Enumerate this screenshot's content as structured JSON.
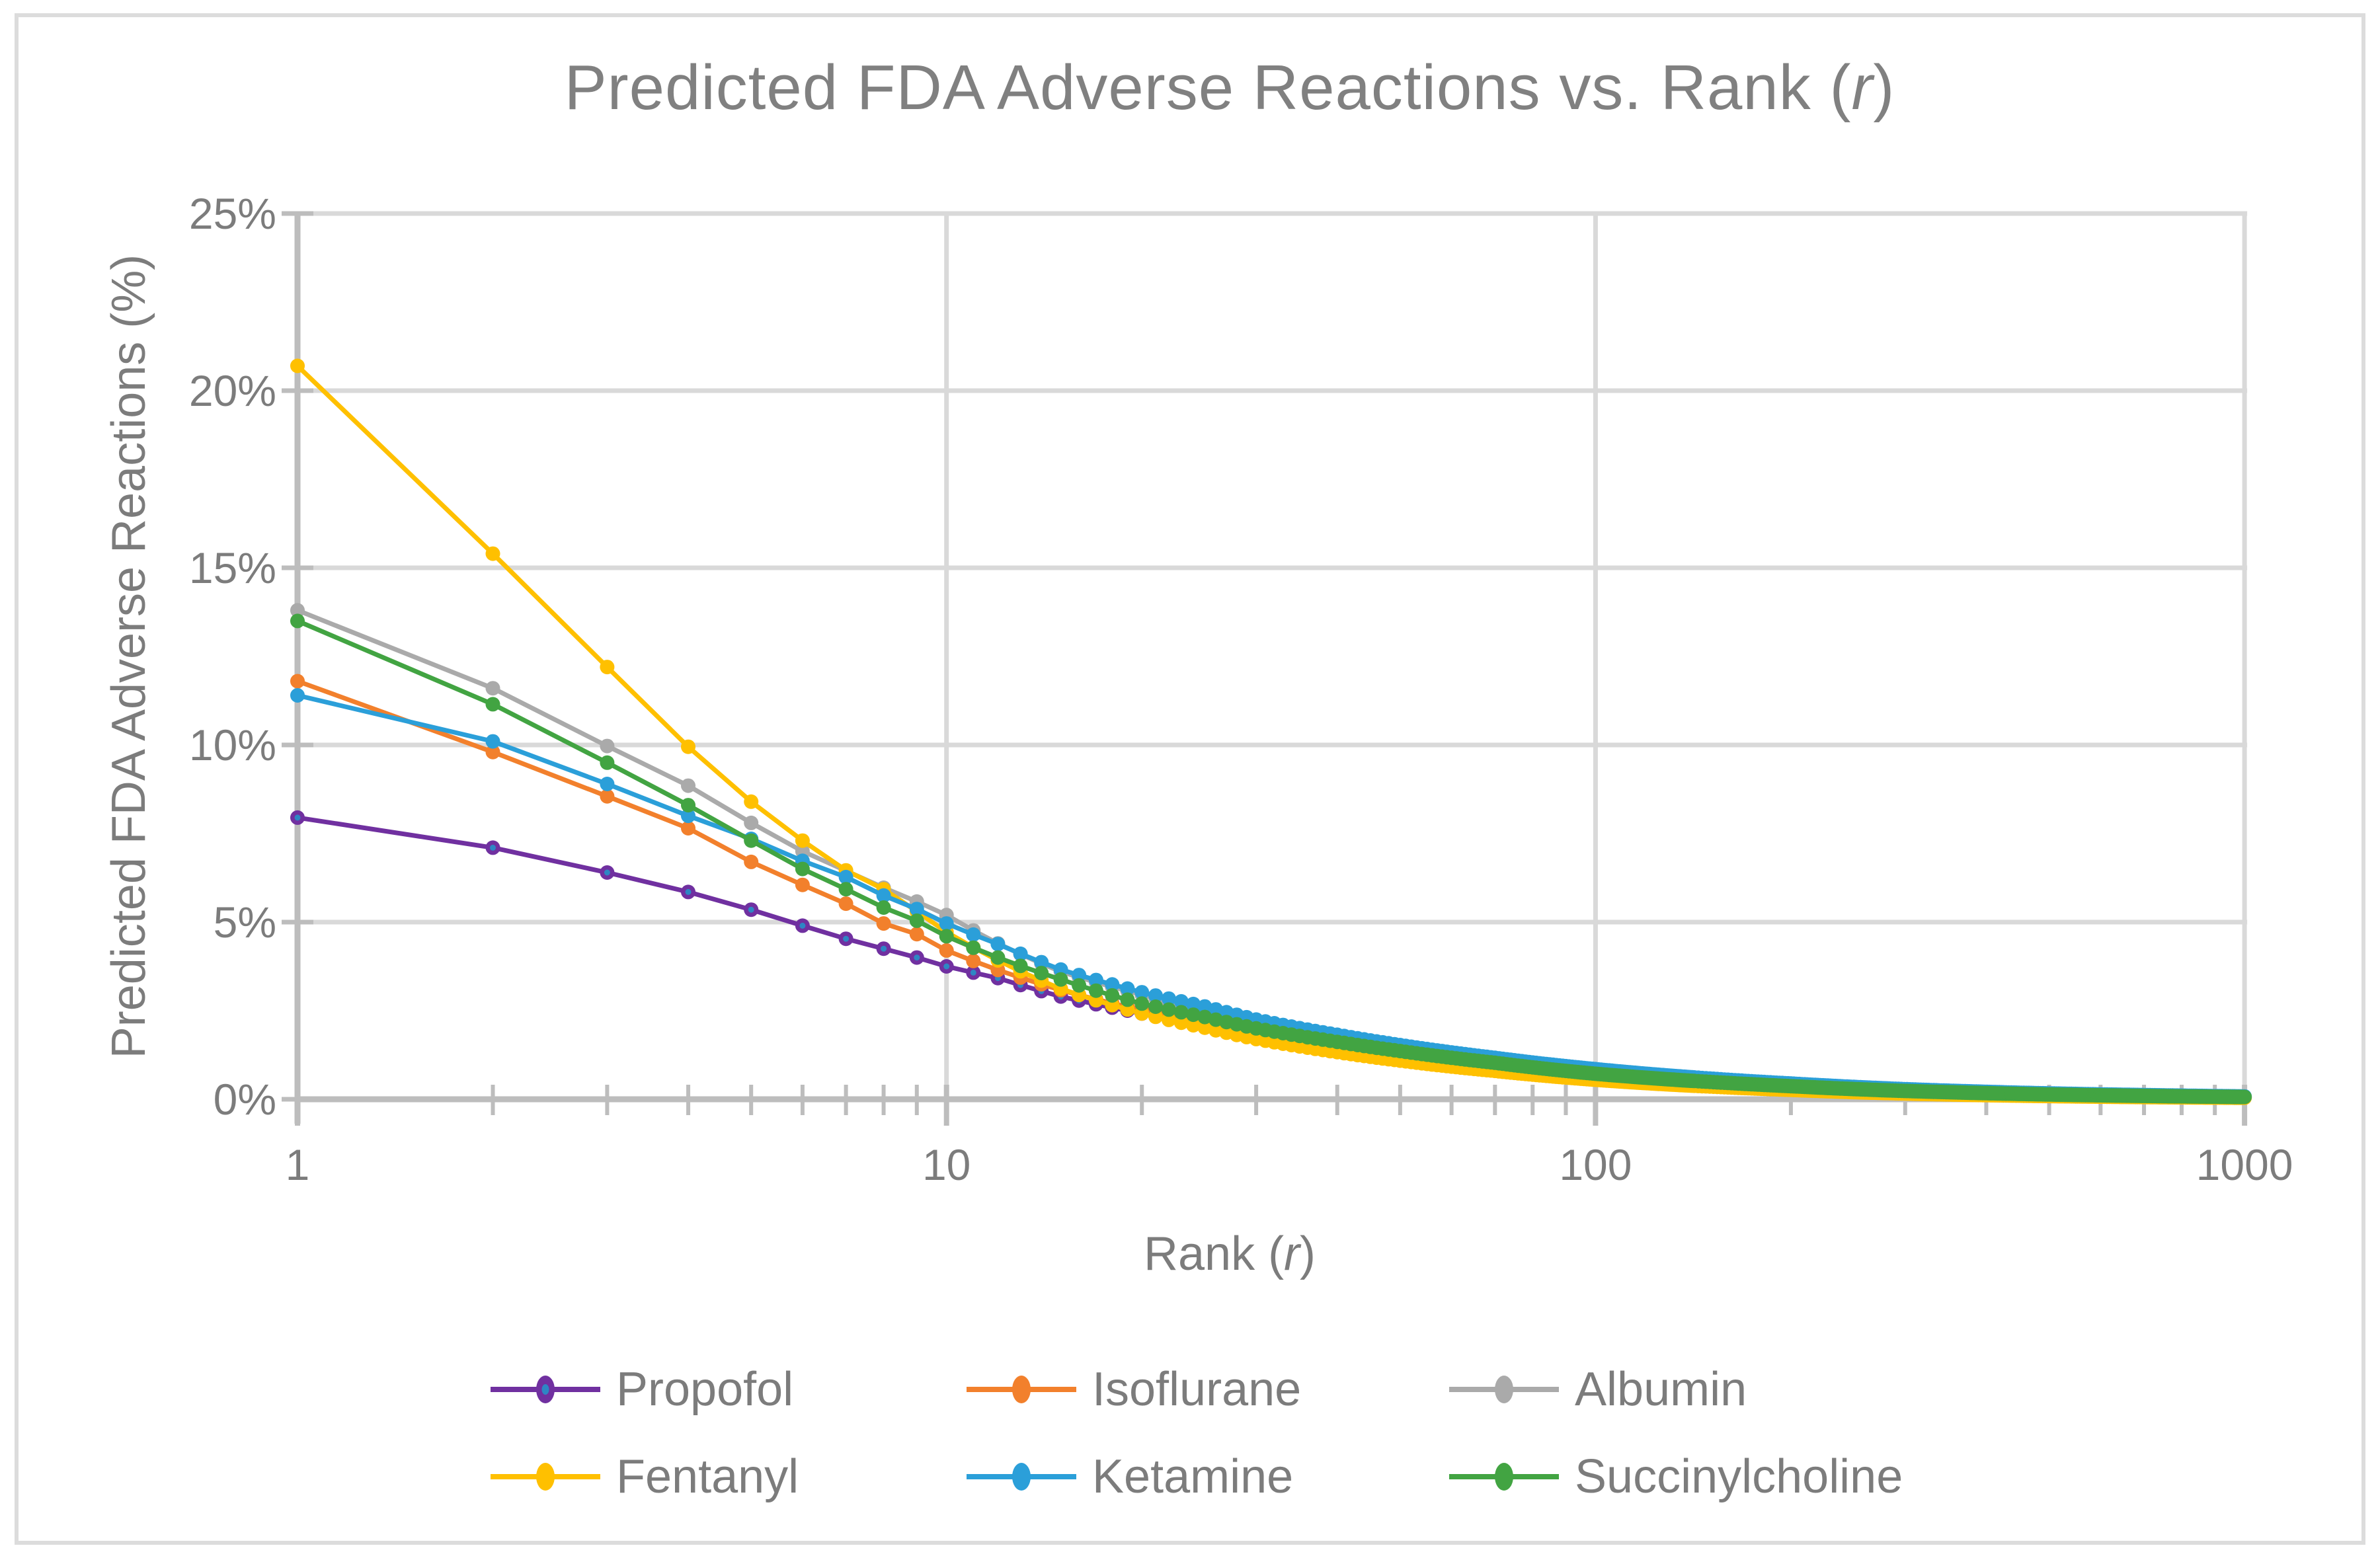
{
  "title": {
    "prefix": "Predicted FDA Adverse Reactions vs. Rank (",
    "italic": "r",
    "suffix": ")"
  },
  "y_axis": {
    "title": "Predicted FDA Adverse Reactions (%)",
    "tick_labels": [
      "25%",
      "20%",
      "15%",
      "10%",
      "5%",
      "0%"
    ],
    "min": 0,
    "max": 25,
    "grid": true
  },
  "x_axis": {
    "title_prefix": "Rank (",
    "title_italic": "r",
    "title_suffix": ")",
    "tick_labels": [
      "1",
      "10",
      "100",
      "1000"
    ],
    "min": 1,
    "max": 1000,
    "scale": "log",
    "grid": true
  },
  "legend": {
    "position": "bottom",
    "rows": [
      [
        "Propofol",
        "Isoflurane",
        "Albumin"
      ],
      [
        "Fentanyl",
        "Ketamine",
        "Succinylcholine"
      ]
    ]
  },
  "colors": {
    "Propofol": "#7030A0",
    "Propofol_marker_core": "#2E86C4",
    "Isoflurane": "#F2802C",
    "Albumin": "#AAAAAA",
    "Fentanyl": "#FFC000",
    "Ketamine": "#2B9FD9",
    "Succinylcholine": "#42A442",
    "text": "#7C7C7C",
    "title_text": "#808080",
    "gridline": "#D9D9D9",
    "axis_line": "#BDBDBD",
    "border": "#DCDCDC"
  },
  "chart_data": {
    "type": "line",
    "title": "Predicted FDA Adverse Reactions vs. Rank (r)",
    "xlabel": "Rank (r)",
    "ylabel": "Predicted FDA Adverse Reactions (%)",
    "x_scale": "log",
    "xlim": [
      1,
      1000
    ],
    "ylim": [
      0,
      25
    ],
    "grid": true,
    "legend_position": "bottom",
    "marker": "circle",
    "note": "values in percent; series sampled at anchor ranks, markers drawn at every rank 1-1000 in source",
    "anchor_ranks": [
      1,
      2,
      3,
      4,
      5,
      6,
      7,
      8,
      9,
      10,
      12,
      15,
      20,
      25,
      30,
      40,
      50,
      70,
      100,
      150,
      200,
      300,
      500,
      700,
      1000
    ],
    "series": [
      {
        "name": "Propofol",
        "color": "#7030A0",
        "marker_core": "#2E86C4",
        "values": [
          7.95,
          7.1,
          6.4,
          5.85,
          5.35,
          4.9,
          4.53,
          4.25,
          4.0,
          3.75,
          3.42,
          2.9,
          2.42,
          2.08,
          1.8,
          1.43,
          1.18,
          0.88,
          0.62,
          0.42,
          0.31,
          0.195,
          0.11,
          0.078,
          0.052
        ]
      },
      {
        "name": "Isoflurane",
        "color": "#F2802C",
        "values": [
          11.8,
          9.8,
          8.55,
          7.65,
          6.7,
          6.05,
          5.52,
          4.96,
          4.66,
          4.2,
          3.65,
          3.08,
          2.52,
          2.16,
          1.87,
          1.49,
          1.24,
          0.93,
          0.66,
          0.445,
          0.33,
          0.21,
          0.12,
          0.085,
          0.057
        ]
      },
      {
        "name": "Albumin",
        "color": "#AAAAAA",
        "values": [
          13.8,
          11.6,
          9.97,
          8.85,
          7.8,
          7.0,
          6.45,
          5.97,
          5.58,
          5.2,
          4.4,
          3.6,
          2.95,
          2.5,
          2.16,
          1.74,
          1.46,
          1.11,
          0.8,
          0.55,
          0.415,
          0.265,
          0.153,
          0.11,
          0.073
        ]
      },
      {
        "name": "Fentanyl",
        "color": "#FFC000",
        "values": [
          20.7,
          15.4,
          12.2,
          9.95,
          8.4,
          7.3,
          6.46,
          5.93,
          5.3,
          4.72,
          3.92,
          3.12,
          2.42,
          2.02,
          1.7,
          1.33,
          1.09,
          0.8,
          0.55,
          0.36,
          0.265,
          0.162,
          0.09,
          0.062,
          0.042
        ]
      },
      {
        "name": "Ketamine",
        "color": "#2B9FD9",
        "values": [
          11.4,
          10.1,
          8.9,
          8.0,
          7.35,
          6.73,
          6.27,
          5.75,
          5.37,
          4.96,
          4.38,
          3.66,
          3.02,
          2.62,
          2.25,
          1.82,
          1.53,
          1.17,
          0.85,
          0.585,
          0.445,
          0.285,
          0.165,
          0.118,
          0.08
        ]
      },
      {
        "name": "Succinylcholine",
        "color": "#42A442",
        "values": [
          13.5,
          11.15,
          9.5,
          8.3,
          7.3,
          6.5,
          5.93,
          5.41,
          5.04,
          4.6,
          4.0,
          3.38,
          2.7,
          2.32,
          2.0,
          1.62,
          1.36,
          1.03,
          0.72,
          0.49,
          0.37,
          0.235,
          0.135,
          0.095,
          0.065
        ]
      }
    ]
  }
}
